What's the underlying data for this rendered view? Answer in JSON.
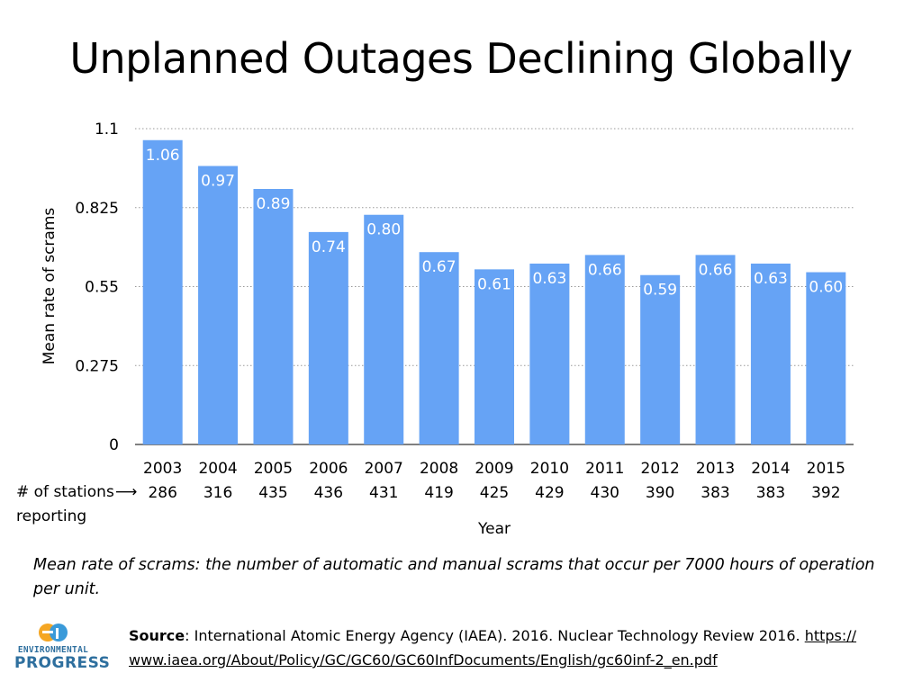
{
  "title": "Unplanned Outages Declining Globally",
  "chart_data": {
    "type": "bar",
    "categories": [
      "2003",
      "2004",
      "2005",
      "2006",
      "2007",
      "2008",
      "2009",
      "2010",
      "2011",
      "2012",
      "2013",
      "2014",
      "2015"
    ],
    "values": [
      1.06,
      0.97,
      0.89,
      0.74,
      0.8,
      0.67,
      0.61,
      0.63,
      0.66,
      0.59,
      0.66,
      0.63,
      0.6
    ],
    "data_labels": [
      "1.06",
      "0.97",
      "0.89",
      "0.74",
      "0.80",
      "0.67",
      "0.61",
      "0.63",
      "0.66",
      "0.59",
      "0.66",
      "0.63",
      "0.60"
    ],
    "stations_reporting": [
      "286",
      "316",
      "435",
      "436",
      "431",
      "419",
      "425",
      "429",
      "430",
      "390",
      "383",
      "383",
      "392"
    ],
    "xlabel": "Year",
    "ylabel": "Mean rate of scrams",
    "ylim": [
      0,
      1.1
    ],
    "yticks": [
      0,
      0.275,
      0.55,
      0.825,
      1.1
    ],
    "ytick_labels": [
      "0",
      "0.275",
      "0.55",
      "0.825",
      "1.1"
    ],
    "grid": "horizontal-dotted",
    "bar_color": "#66a3f5",
    "label_color": "#ffffff"
  },
  "stations_label": {
    "line1": "# of stations",
    "line2": "reporting",
    "arrow": "⟶"
  },
  "footnote": "Mean rate of scrams: the number of automatic and manual scrams that occur per 7000 hours of operation per unit.",
  "logo": {
    "line1": "ENVIRONMENTAL",
    "line2": "PROGRESS",
    "colors": {
      "orange": "#f5a623",
      "blue": "#3a9ad9"
    }
  },
  "source": {
    "label": "Source",
    "text": ": International Atomic Energy Agency (IAEA). 2016. Nuclear Technology Review 2016. ",
    "link_line1": "https://",
    "link_line2": "www.iaea.org/About/Policy/GC/GC60/GC60InfDocuments/English/gc60inf-2_en.pdf"
  }
}
